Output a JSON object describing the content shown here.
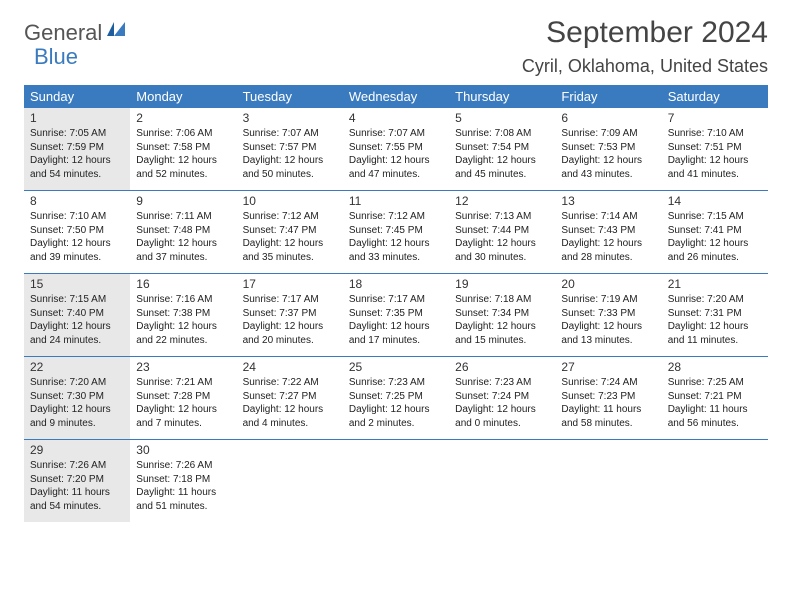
{
  "logo": {
    "word1": "General",
    "word2": "Blue"
  },
  "title": "September 2024",
  "location": "Cyril, Oklahoma, United States",
  "headerColor": "#3a7bbf",
  "daysOfWeek": [
    "Sunday",
    "Monday",
    "Tuesday",
    "Wednesday",
    "Thursday",
    "Friday",
    "Saturday"
  ],
  "shadedDays": [
    1,
    15,
    22,
    29
  ],
  "weeks": [
    [
      {
        "n": 1,
        "sr": "7:05 AM",
        "ss": "7:59 PM",
        "dl": "12 hours and 54 minutes."
      },
      {
        "n": 2,
        "sr": "7:06 AM",
        "ss": "7:58 PM",
        "dl": "12 hours and 52 minutes."
      },
      {
        "n": 3,
        "sr": "7:07 AM",
        "ss": "7:57 PM",
        "dl": "12 hours and 50 minutes."
      },
      {
        "n": 4,
        "sr": "7:07 AM",
        "ss": "7:55 PM",
        "dl": "12 hours and 47 minutes."
      },
      {
        "n": 5,
        "sr": "7:08 AM",
        "ss": "7:54 PM",
        "dl": "12 hours and 45 minutes."
      },
      {
        "n": 6,
        "sr": "7:09 AM",
        "ss": "7:53 PM",
        "dl": "12 hours and 43 minutes."
      },
      {
        "n": 7,
        "sr": "7:10 AM",
        "ss": "7:51 PM",
        "dl": "12 hours and 41 minutes."
      }
    ],
    [
      {
        "n": 8,
        "sr": "7:10 AM",
        "ss": "7:50 PM",
        "dl": "12 hours and 39 minutes."
      },
      {
        "n": 9,
        "sr": "7:11 AM",
        "ss": "7:48 PM",
        "dl": "12 hours and 37 minutes."
      },
      {
        "n": 10,
        "sr": "7:12 AM",
        "ss": "7:47 PM",
        "dl": "12 hours and 35 minutes."
      },
      {
        "n": 11,
        "sr": "7:12 AM",
        "ss": "7:45 PM",
        "dl": "12 hours and 33 minutes."
      },
      {
        "n": 12,
        "sr": "7:13 AM",
        "ss": "7:44 PM",
        "dl": "12 hours and 30 minutes."
      },
      {
        "n": 13,
        "sr": "7:14 AM",
        "ss": "7:43 PM",
        "dl": "12 hours and 28 minutes."
      },
      {
        "n": 14,
        "sr": "7:15 AM",
        "ss": "7:41 PM",
        "dl": "12 hours and 26 minutes."
      }
    ],
    [
      {
        "n": 15,
        "sr": "7:15 AM",
        "ss": "7:40 PM",
        "dl": "12 hours and 24 minutes."
      },
      {
        "n": 16,
        "sr": "7:16 AM",
        "ss": "7:38 PM",
        "dl": "12 hours and 22 minutes."
      },
      {
        "n": 17,
        "sr": "7:17 AM",
        "ss": "7:37 PM",
        "dl": "12 hours and 20 minutes."
      },
      {
        "n": 18,
        "sr": "7:17 AM",
        "ss": "7:35 PM",
        "dl": "12 hours and 17 minutes."
      },
      {
        "n": 19,
        "sr": "7:18 AM",
        "ss": "7:34 PM",
        "dl": "12 hours and 15 minutes."
      },
      {
        "n": 20,
        "sr": "7:19 AM",
        "ss": "7:33 PM",
        "dl": "12 hours and 13 minutes."
      },
      {
        "n": 21,
        "sr": "7:20 AM",
        "ss": "7:31 PM",
        "dl": "12 hours and 11 minutes."
      }
    ],
    [
      {
        "n": 22,
        "sr": "7:20 AM",
        "ss": "7:30 PM",
        "dl": "12 hours and 9 minutes."
      },
      {
        "n": 23,
        "sr": "7:21 AM",
        "ss": "7:28 PM",
        "dl": "12 hours and 7 minutes."
      },
      {
        "n": 24,
        "sr": "7:22 AM",
        "ss": "7:27 PM",
        "dl": "12 hours and 4 minutes."
      },
      {
        "n": 25,
        "sr": "7:23 AM",
        "ss": "7:25 PM",
        "dl": "12 hours and 2 minutes."
      },
      {
        "n": 26,
        "sr": "7:23 AM",
        "ss": "7:24 PM",
        "dl": "12 hours and 0 minutes."
      },
      {
        "n": 27,
        "sr": "7:24 AM",
        "ss": "7:23 PM",
        "dl": "11 hours and 58 minutes."
      },
      {
        "n": 28,
        "sr": "7:25 AM",
        "ss": "7:21 PM",
        "dl": "11 hours and 56 minutes."
      }
    ],
    [
      {
        "n": 29,
        "sr": "7:26 AM",
        "ss": "7:20 PM",
        "dl": "11 hours and 54 minutes."
      },
      {
        "n": 30,
        "sr": "7:26 AM",
        "ss": "7:18 PM",
        "dl": "11 hours and 51 minutes."
      },
      null,
      null,
      null,
      null,
      null
    ]
  ],
  "labels": {
    "sunrise": "Sunrise:",
    "sunset": "Sunset:",
    "daylight": "Daylight:"
  }
}
